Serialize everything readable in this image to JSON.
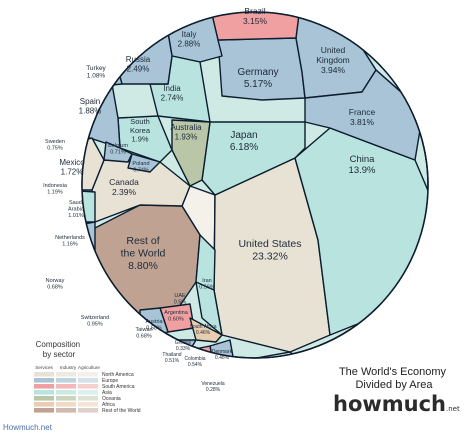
{
  "chart_data": {
    "type": "voronoi-treemap",
    "title": "The World's Economy Divided by Area",
    "brand": {
      "name": "howmuch",
      "suffix": ".net"
    },
    "source": "Howmuch.net",
    "legend": {
      "title": "Composition by sector",
      "columns": [
        "Services",
        "Industry",
        "Agriculture"
      ],
      "regions": [
        {
          "name": "North America",
          "color": "#e8e2d4"
        },
        {
          "name": "Europe",
          "color": "#a8c4d6"
        },
        {
          "name": "South America",
          "color": "#f0a0a0"
        },
        {
          "name": "Asia",
          "color": "#b9e3de"
        },
        {
          "name": "Oceania",
          "color": "#b9c7a8"
        },
        {
          "name": "Africa",
          "color": "#e9cdb0"
        },
        {
          "name": "Rest of the World",
          "color": "#c0a293"
        }
      ]
    },
    "countries": [
      {
        "name": "United States",
        "value": "23.32%",
        "region": "North America"
      },
      {
        "name": "China",
        "value": "13.9%",
        "region": "Asia"
      },
      {
        "name": "Rest of the World",
        "value": "8.80%",
        "region": "Rest of the World"
      },
      {
        "name": "Japan",
        "value": "6.18%",
        "region": "Asia"
      },
      {
        "name": "Germany",
        "value": "5.17%",
        "region": "Europe"
      },
      {
        "name": "United Kingdom",
        "value": "3.94%",
        "region": "Europe"
      },
      {
        "name": "France",
        "value": "3.81%",
        "region": "Europe"
      },
      {
        "name": "Brazil",
        "value": "3.15%",
        "region": "South America"
      },
      {
        "name": "Italy",
        "value": "2.88%",
        "region": "Europe"
      },
      {
        "name": "India",
        "value": "2.74%",
        "region": "Asia"
      },
      {
        "name": "Russia",
        "value": "2.49%",
        "region": "Europe"
      },
      {
        "name": "Canada",
        "value": "2.39%",
        "region": "North America"
      },
      {
        "name": "Australia",
        "value": "1.93%",
        "region": "Oceania"
      },
      {
        "name": "South Korea",
        "value": "1.9%",
        "region": "Asia"
      },
      {
        "name": "Spain",
        "value": "1.88%",
        "region": "Europe"
      },
      {
        "name": "Mexico",
        "value": "1.72%",
        "region": "North America"
      },
      {
        "name": "Indonesia",
        "value": "1.19%",
        "region": "Asia"
      },
      {
        "name": "Netherlands",
        "value": "1.16%",
        "region": "Europe"
      },
      {
        "name": "Turkey",
        "value": "1.08%",
        "region": "Europe"
      },
      {
        "name": "Saudi Arabia",
        "value": "1.01%",
        "region": "Asia"
      },
      {
        "name": "Switzerland",
        "value": "0.95%",
        "region": "Europe"
      },
      {
        "name": "Sweden",
        "value": "0.75%",
        "region": "Europe"
      },
      {
        "name": "Belgium",
        "value": "0.71%",
        "region": "Europe"
      },
      {
        "name": "Poland",
        "value": "0.74%",
        "region": "Europe"
      },
      {
        "name": "Norway",
        "value": "0.68%",
        "region": "Europe"
      },
      {
        "name": "Taiwan",
        "value": "0.68%",
        "region": "Asia"
      },
      {
        "name": "Argentina",
        "value": "0.60%",
        "region": "South America"
      },
      {
        "name": "Austria",
        "value": "0.58%",
        "region": "Europe"
      },
      {
        "name": "Iran",
        "value": "0.56%",
        "region": "Asia"
      },
      {
        "name": "UAE",
        "value": "0.5%",
        "region": "Asia"
      },
      {
        "name": "Thailand",
        "value": "0.51%",
        "region": "Asia"
      },
      {
        "name": "Colombia",
        "value": "0.54%",
        "region": "South America"
      },
      {
        "name": "Denmark",
        "value": "0.48%",
        "region": "Europe"
      },
      {
        "name": "South Africa",
        "value": "0.46%",
        "region": "Africa"
      },
      {
        "name": "Greece",
        "value": "0.33%",
        "region": "Europe"
      },
      {
        "name": "Venezuela",
        "value": "0.28%",
        "region": "South America"
      }
    ]
  },
  "styles": {
    "border_color": "#0b1d2e",
    "region_colors": {
      "North America": "#e8e2d4",
      "Europe": "#a8c4d6",
      "South America": "#f0a0a0",
      "Asia": "#b9e3de",
      "Oceania": "#b9c7a8",
      "Africa": "#e9cdb0",
      "Rest of the World": "#c0a293"
    }
  }
}
